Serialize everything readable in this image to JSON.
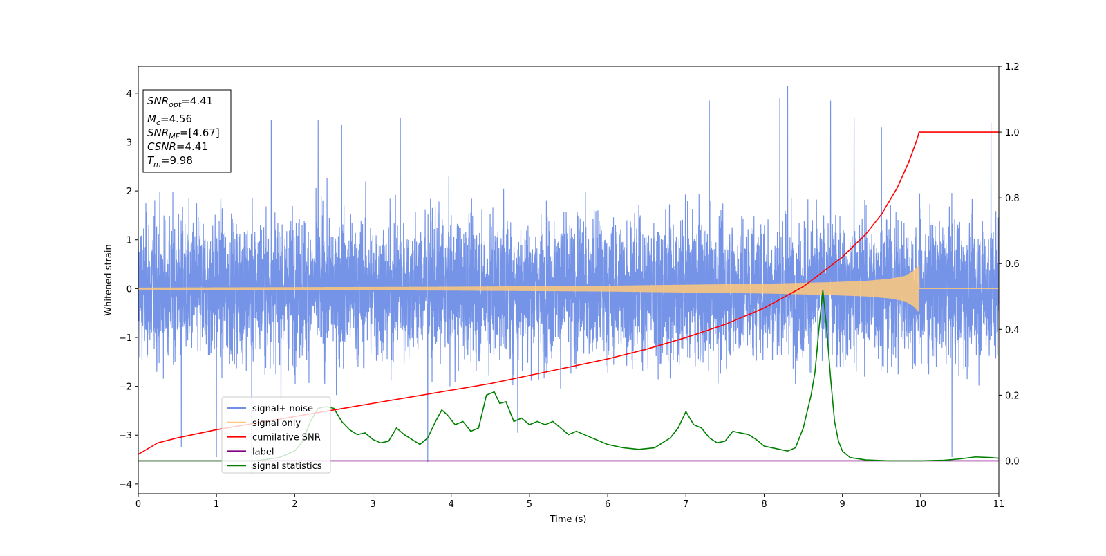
{
  "chart_data": {
    "type": "line",
    "xlabel": "Time (s)",
    "ylabel_left": "Whitened strain",
    "ylabel_right": "",
    "xlim": [
      0,
      11
    ],
    "ylim_left": [
      -4.2,
      4.55
    ],
    "ylim_right": [
      -0.1,
      1.2
    ],
    "x_ticks": [
      0,
      1,
      2,
      3,
      4,
      5,
      6,
      7,
      8,
      9,
      10,
      11
    ],
    "y_ticks_left": [
      -4,
      -3,
      -2,
      -1,
      0,
      1,
      2,
      3,
      4
    ],
    "y_ticks_right": [
      0.0,
      0.2,
      0.4,
      0.6,
      0.8,
      1.0,
      1.2
    ],
    "x_tick_labels": [
      "0",
      "1",
      "2",
      "3",
      "4",
      "5",
      "6",
      "7",
      "8",
      "9",
      "10",
      "11"
    ],
    "y_tick_labels_left": [
      "−4",
      "−3",
      "−2",
      "−1",
      "0",
      "1",
      "2",
      "3",
      "4"
    ],
    "y_tick_labels_right": [
      "0.0",
      "0.2",
      "0.4",
      "0.6",
      "0.8",
      "1.0",
      "1.2"
    ],
    "legend": {
      "placement": "lower-left",
      "entries": [
        {
          "label": "signal+ noise",
          "color": "#6f8ee6"
        },
        {
          "label": "signal only",
          "color": "#ffc87a"
        },
        {
          "label": "cumilative SNR",
          "color": "#ff0000"
        },
        {
          "label": "label",
          "color": "#800080"
        },
        {
          "label": "signal statistics",
          "color": "#008000"
        }
      ]
    },
    "info_box": {
      "placement": "top-left",
      "lines": [
        {
          "base": "SNR",
          "sub": "opt",
          "rest": "=4.41"
        },
        {
          "base": "M",
          "sub": "c",
          "rest": "=4.56"
        },
        {
          "base": "SNR",
          "sub": "MF",
          "rest": "=[4.67]"
        },
        {
          "base": "CSNR",
          "sub": "",
          "rest": "=4.41"
        },
        {
          "base": "T",
          "sub": "m",
          "rest": "=9.98"
        }
      ]
    },
    "series": [
      {
        "name": "signal+ noise",
        "axis": "left",
        "color": "#6f8ee6",
        "kind": "noise",
        "typical_range": [
          -1.5,
          1.5
        ],
        "extremes": [
          -3.8,
          4.15
        ],
        "spikes": [
          [
            0.55,
            -3.25
          ],
          [
            1.0,
            -3.45
          ],
          [
            1.45,
            -3.8
          ],
          [
            1.7,
            3.45
          ],
          [
            2.3,
            3.45
          ],
          [
            2.6,
            3.35
          ],
          [
            3.35,
            3.5
          ],
          [
            3.7,
            -3.55
          ],
          [
            4.85,
            -2.95
          ],
          [
            7.3,
            3.85
          ],
          [
            8.2,
            3.9
          ],
          [
            8.3,
            4.15
          ],
          [
            8.85,
            3.85
          ],
          [
            9.15,
            3.5
          ],
          [
            9.5,
            3.3
          ],
          [
            10.4,
            -3.45
          ],
          [
            10.9,
            3.4
          ]
        ]
      },
      {
        "name": "signal only",
        "axis": "left",
        "color": "#ffc87a",
        "kind": "chirp",
        "envelope": [
          [
            0,
            0.02
          ],
          [
            2,
            0.03
          ],
          [
            4,
            0.04
          ],
          [
            6,
            0.06
          ],
          [
            7,
            0.08
          ],
          [
            8,
            0.1
          ],
          [
            8.8,
            0.13
          ],
          [
            9.3,
            0.16
          ],
          [
            9.6,
            0.2
          ],
          [
            9.8,
            0.26
          ],
          [
            9.9,
            0.35
          ],
          [
            9.98,
            0.48
          ]
        ],
        "merger_time": 9.98
      },
      {
        "name": "cumilative SNR",
        "axis": "right",
        "color": "#ff0000",
        "x": [
          0,
          0.25,
          0.5,
          1.0,
          1.5,
          2.0,
          2.5,
          3.0,
          3.5,
          4.0,
          4.5,
          5.0,
          5.5,
          6.0,
          6.5,
          7.0,
          7.5,
          8.0,
          8.5,
          9.0,
          9.3,
          9.5,
          9.7,
          9.85,
          9.95,
          9.98,
          10.0,
          10.5,
          11.0
        ],
        "values": [
          0.02,
          0.055,
          0.07,
          0.095,
          0.115,
          0.135,
          0.155,
          0.175,
          0.195,
          0.215,
          0.235,
          0.26,
          0.285,
          0.31,
          0.34,
          0.375,
          0.415,
          0.465,
          0.53,
          0.62,
          0.69,
          0.75,
          0.83,
          0.91,
          0.975,
          1.0,
          1.0,
          1.0,
          1.0
        ]
      },
      {
        "name": "label",
        "axis": "right",
        "color": "#800080",
        "x": [
          0,
          11
        ],
        "values": [
          0.0,
          0.0
        ]
      },
      {
        "name": "signal statistics",
        "axis": "right",
        "color": "#008000",
        "x": [
          0,
          0.5,
          1.0,
          1.5,
          1.8,
          2.0,
          2.1,
          2.2,
          2.3,
          2.4,
          2.5,
          2.6,
          2.7,
          2.8,
          2.9,
          3.0,
          3.1,
          3.2,
          3.3,
          3.4,
          3.5,
          3.6,
          3.7,
          3.8,
          3.88,
          3.95,
          4.05,
          4.15,
          4.25,
          4.35,
          4.45,
          4.55,
          4.62,
          4.7,
          4.8,
          4.9,
          5.0,
          5.1,
          5.2,
          5.3,
          5.4,
          5.5,
          5.6,
          5.7,
          5.8,
          5.9,
          6.0,
          6.2,
          6.4,
          6.6,
          6.8,
          6.9,
          7.0,
          7.1,
          7.2,
          7.3,
          7.4,
          7.5,
          7.6,
          7.7,
          7.8,
          7.9,
          8.0,
          8.1,
          8.2,
          8.3,
          8.4,
          8.5,
          8.6,
          8.65,
          8.7,
          8.75,
          8.8,
          8.85,
          8.9,
          8.95,
          9.0,
          9.1,
          9.3,
          9.6,
          10.0,
          10.3,
          10.5,
          10.7,
          10.9,
          11.0
        ],
        "values": [
          0.0,
          0.0,
          0.0,
          0.0,
          0.01,
          0.03,
          0.06,
          0.12,
          0.16,
          0.165,
          0.16,
          0.12,
          0.095,
          0.08,
          0.085,
          0.065,
          0.055,
          0.06,
          0.1,
          0.08,
          0.065,
          0.05,
          0.07,
          0.12,
          0.155,
          0.14,
          0.11,
          0.12,
          0.09,
          0.1,
          0.2,
          0.21,
          0.175,
          0.18,
          0.12,
          0.13,
          0.11,
          0.12,
          0.11,
          0.12,
          0.1,
          0.08,
          0.09,
          0.08,
          0.07,
          0.06,
          0.05,
          0.04,
          0.035,
          0.04,
          0.07,
          0.1,
          0.15,
          0.11,
          0.1,
          0.07,
          0.055,
          0.06,
          0.09,
          0.085,
          0.08,
          0.065,
          0.045,
          0.04,
          0.035,
          0.03,
          0.04,
          0.1,
          0.2,
          0.27,
          0.4,
          0.52,
          0.4,
          0.25,
          0.12,
          0.06,
          0.03,
          0.01,
          0.003,
          0.0,
          0.0,
          0.002,
          0.006,
          0.012,
          0.01,
          0.008
        ]
      }
    ]
  }
}
